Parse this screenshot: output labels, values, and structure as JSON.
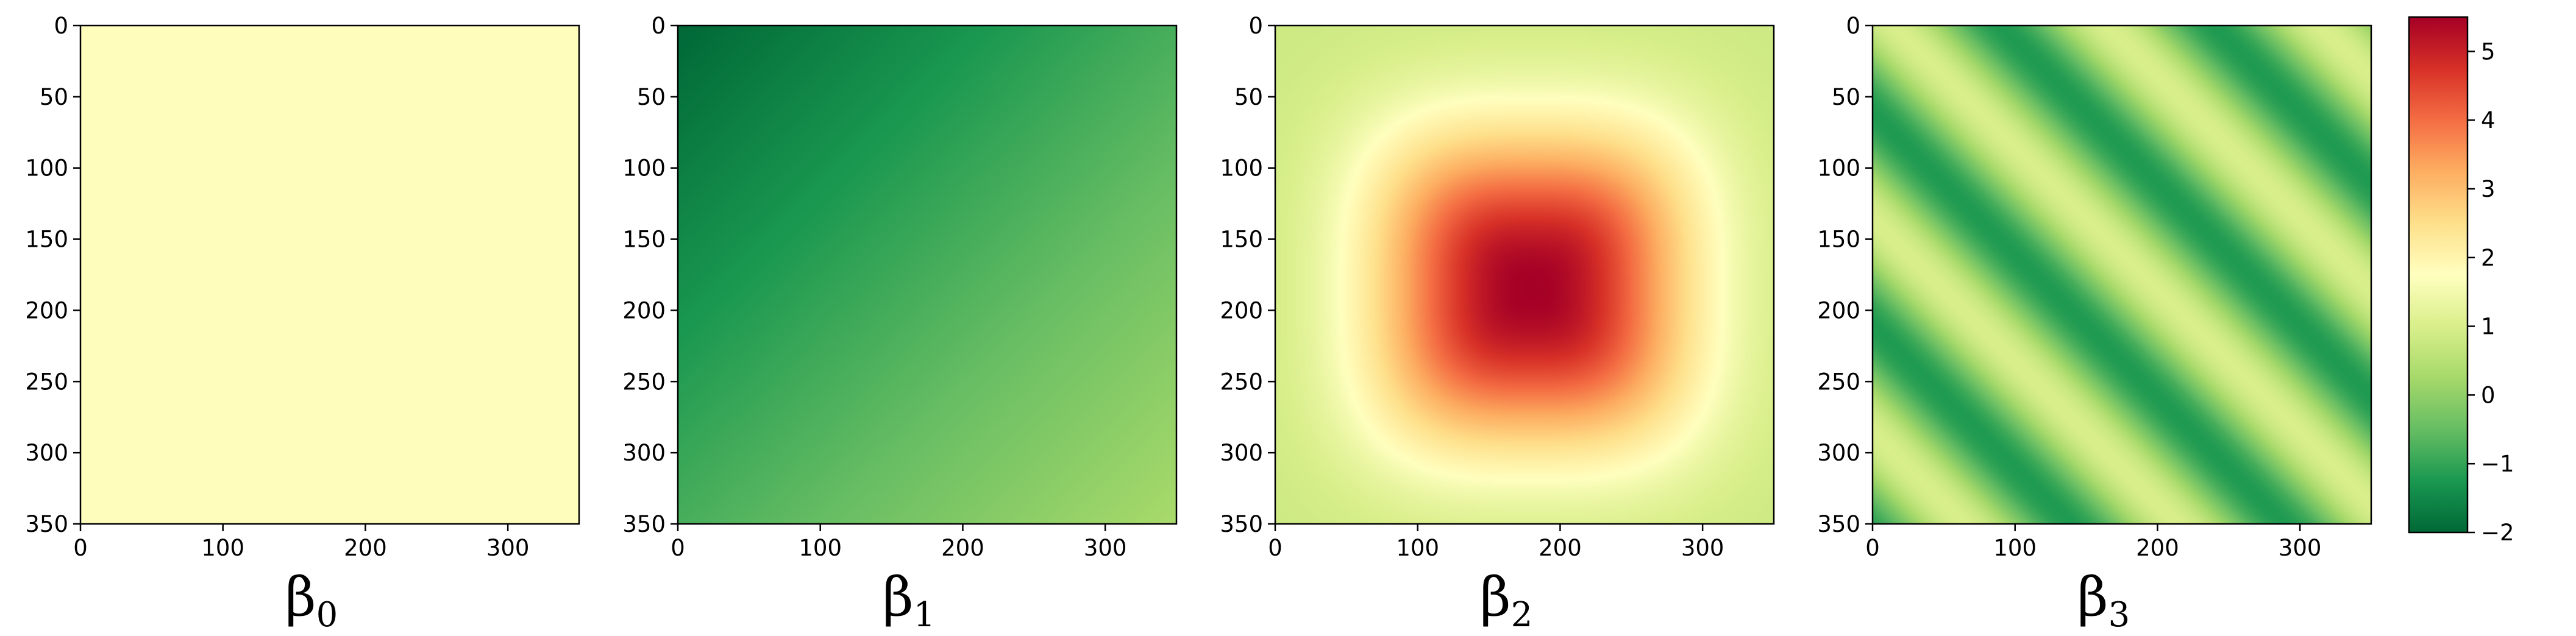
{
  "chart_data": [
    {
      "type": "heatmap",
      "panel_label": "β",
      "panel_subscript": "0",
      "field": "constant",
      "value": 1.8,
      "xlim": [
        0,
        350
      ],
      "ylim": [
        350,
        0
      ],
      "xticks": [
        0,
        100,
        200,
        300
      ],
      "yticks": [
        0,
        50,
        100,
        150,
        200,
        250,
        300,
        350
      ]
    },
    {
      "type": "heatmap",
      "panel_label": "β",
      "panel_subscript": "1",
      "field": "linear",
      "corner_values": {
        "top_left": -2.0,
        "top_right": -0.8,
        "bottom_left": -0.8,
        "bottom_right": 0.3
      },
      "xlim": [
        0,
        350
      ],
      "ylim": [
        350,
        0
      ],
      "xticks": [
        0,
        100,
        200,
        300
      ],
      "yticks": [
        0,
        50,
        100,
        150,
        200,
        250,
        300,
        350
      ]
    },
    {
      "type": "heatmap",
      "panel_label": "β",
      "panel_subscript": "2",
      "field": "radial_peak",
      "peak_value": 5.5,
      "peak_center": [
        180,
        185
      ],
      "edge_value": 0.8,
      "mid_ring_value": 1.8,
      "xlim": [
        0,
        350
      ],
      "ylim": [
        350,
        0
      ],
      "xticks": [
        0,
        100,
        200,
        300
      ],
      "yticks": [
        0,
        50,
        100,
        150,
        200,
        250,
        300,
        350
      ]
    },
    {
      "type": "heatmap",
      "panel_label": "β",
      "panel_subscript": "3",
      "field": "diagonal_stripes",
      "min_value": -1.2,
      "max_value": 1.0,
      "stripe_period": 150,
      "xlim": [
        0,
        350
      ],
      "ylim": [
        350,
        0
      ],
      "xticks": [
        0,
        100,
        200,
        300
      ],
      "yticks": [
        0,
        50,
        100,
        150,
        200,
        250,
        300,
        350
      ]
    }
  ],
  "colorbar": {
    "colormap": "RdYlGn_r",
    "range": [
      -2,
      5.5
    ],
    "ticks": [
      5,
      4,
      3,
      2,
      1,
      0,
      -1,
      -2
    ],
    "tick_labels": [
      "5",
      "4",
      "3",
      "2",
      "1",
      "0",
      "−1",
      "−2"
    ]
  },
  "colors": {
    "low": "#006837",
    "mid_low": "#66bd63",
    "mid": "#ffffbf",
    "mid_high": "#fdae61",
    "high": "#a50026"
  }
}
